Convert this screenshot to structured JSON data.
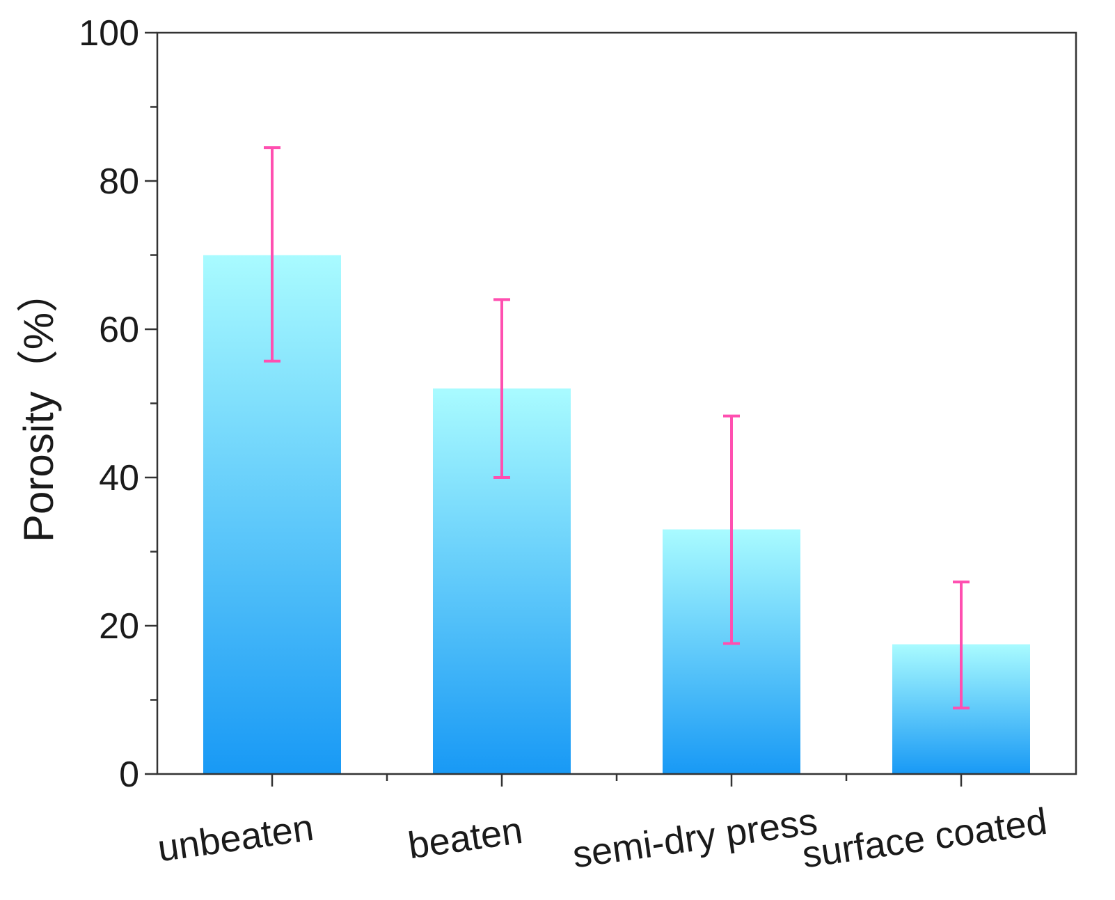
{
  "chart_data": {
    "type": "bar",
    "title": "",
    "xlabel": "",
    "ylabel": "Porosity（%）",
    "ylim": [
      0,
      100
    ],
    "y_ticks": [
      "0",
      "20",
      "40",
      "60",
      "80",
      "100"
    ],
    "categories": [
      "unbeaten",
      "beaten",
      "semi-dry press",
      "surface coated"
    ],
    "values": [
      70,
      52,
      33,
      17.5
    ],
    "error_upper": [
      84.5,
      64,
      48.3,
      25.9
    ],
    "error_lower": [
      55.7,
      40,
      17.6,
      8.9
    ],
    "grid": false,
    "colors": {
      "bar_top": "#a9fbff",
      "bar_bottom": "#1899f5",
      "error_bar": "#ff4fb0",
      "axis": "#333333"
    }
  }
}
